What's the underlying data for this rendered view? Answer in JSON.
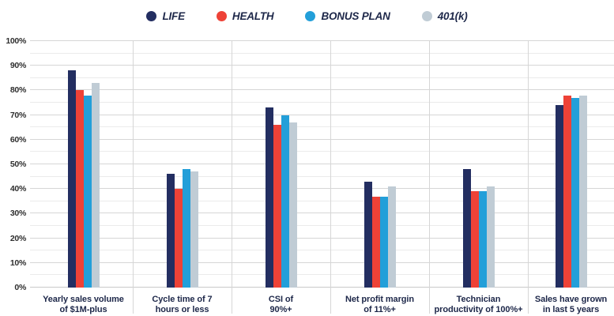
{
  "chart_data": {
    "type": "bar",
    "title": "",
    "xlabel": "",
    "ylabel": "",
    "ylim": [
      0,
      100
    ],
    "y_ticks": [
      "0%",
      "10%",
      "20%",
      "30%",
      "40%",
      "50%",
      "60%",
      "70%",
      "80%",
      "90%",
      "100%"
    ],
    "grid": {
      "major_step": 10,
      "minor_step": 5
    },
    "legend_position": "top-center",
    "categories": [
      "Yearly sales volume\nof $1M-plus",
      "Cycle time of 7\nhours or less",
      "CSI of\n90%+",
      "Net profit margin\nof 11%+",
      "Technician\nproductivity of 100%+",
      "Sales have grown\nin last 5 years"
    ],
    "series": [
      {
        "name": "LIFE",
        "color": "#232e61",
        "values": [
          88,
          46,
          73,
          43,
          48,
          74
        ]
      },
      {
        "name": "HEALTH",
        "color": "#ee4237",
        "values": [
          80,
          40,
          66,
          37,
          39,
          78
        ]
      },
      {
        "name": "BONUS PLAN",
        "color": "#239fd9",
        "values": [
          78,
          48,
          70,
          37,
          39,
          77
        ]
      },
      {
        "name": "401(k)",
        "color": "#c0ccd5",
        "values": [
          83,
          47,
          67,
          41,
          41,
          78
        ]
      }
    ]
  },
  "colors": {
    "major_grid": "#d6d6d6",
    "minor_grid": "#ebebeb",
    "baseline": "#c9c9c9",
    "axis_text": "#2e2e2e",
    "category_text": "#1d2749",
    "background": "#ffffff"
  }
}
